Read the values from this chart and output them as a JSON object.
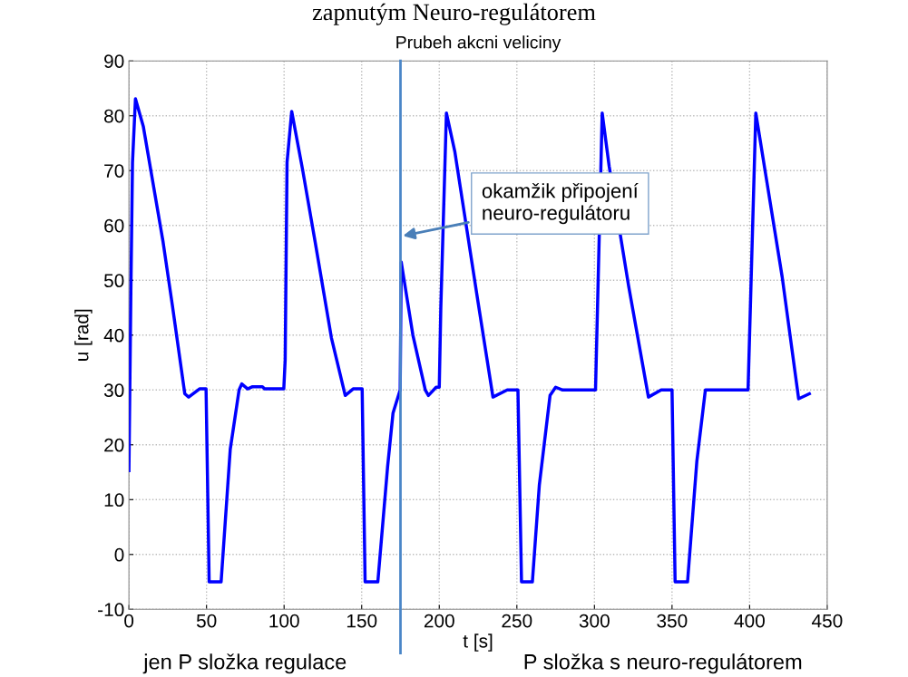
{
  "chart_data": {
    "type": "line",
    "title": "Prubeh akcni veliciny",
    "xlabel": "t [s]",
    "ylabel": "u [rad]",
    "xlim": [
      0,
      450
    ],
    "xticks": [
      0,
      50,
      100,
      150,
      200,
      250,
      300,
      350,
      400,
      450
    ],
    "ylim": [
      -10,
      90
    ],
    "yticks": [
      -10,
      0,
      10,
      20,
      30,
      40,
      50,
      60,
      70,
      80,
      90
    ],
    "grid": true,
    "marker": "none",
    "line_style": "solid",
    "series": [
      {
        "color": "#0000ff",
        "x": [
          0,
          1.2,
          2.3,
          4.2,
          9.3,
          22,
          28,
          36,
          38.5,
          45.5,
          49.7,
          51.7,
          59.4,
          65.3,
          71,
          72.7,
          76.5,
          79.7,
          86,
          87.4,
          99.8,
          100.7,
          101.9,
          104.9,
          111.9,
          120,
          130.5,
          139.4,
          144.5,
          150.3,
          152.2,
          160.4,
          166.7,
          170.2,
          174.8,
          175.5,
          183,
          191,
          193,
          198,
          200,
          201,
          204.6,
          210,
          225,
          234.6,
          243.8,
          250.7,
          253,
          260,
          264.5,
          271.4,
          275,
          279.5,
          300.7,
          305,
          309.5,
          322,
          334.8,
          343,
          350,
          352,
          360,
          366,
          371.5,
          399,
          404,
          421,
          431.6,
          438.5
        ],
        "values": [
          15.3,
          46.7,
          71.5,
          83.1,
          78,
          57,
          45.4,
          29.3,
          28.7,
          30.2,
          30.2,
          -5,
          -5,
          19.2,
          30,
          31.1,
          30.2,
          30.6,
          30.6,
          30.2,
          30.2,
          35.5,
          71.5,
          80.8,
          70.2,
          57,
          39.5,
          29,
          30.2,
          30.2,
          -5,
          -5,
          16,
          25.8,
          30,
          53.3,
          40,
          30,
          29,
          30.5,
          30.5,
          45,
          80.5,
          73.5,
          46,
          28.7,
          30,
          30,
          -5,
          -5,
          12.7,
          29,
          30.5,
          30,
          30,
          80.5,
          70.8,
          49,
          28.7,
          30,
          30,
          -5,
          -5,
          17,
          30,
          30,
          80.5,
          50.6,
          28.4,
          29.3
        ]
      }
    ],
    "ref_lines": [
      {
        "axis": "x",
        "value": 175,
        "color": "#4a86c8",
        "line_style": "solid"
      }
    ],
    "annotations": [
      "zapnutým Neuro-regulátorem",
      "jen P složka regulace",
      "P složka s neuro-regulátorem",
      "okamžik připojení\nneuro-regulátoru"
    ]
  }
}
